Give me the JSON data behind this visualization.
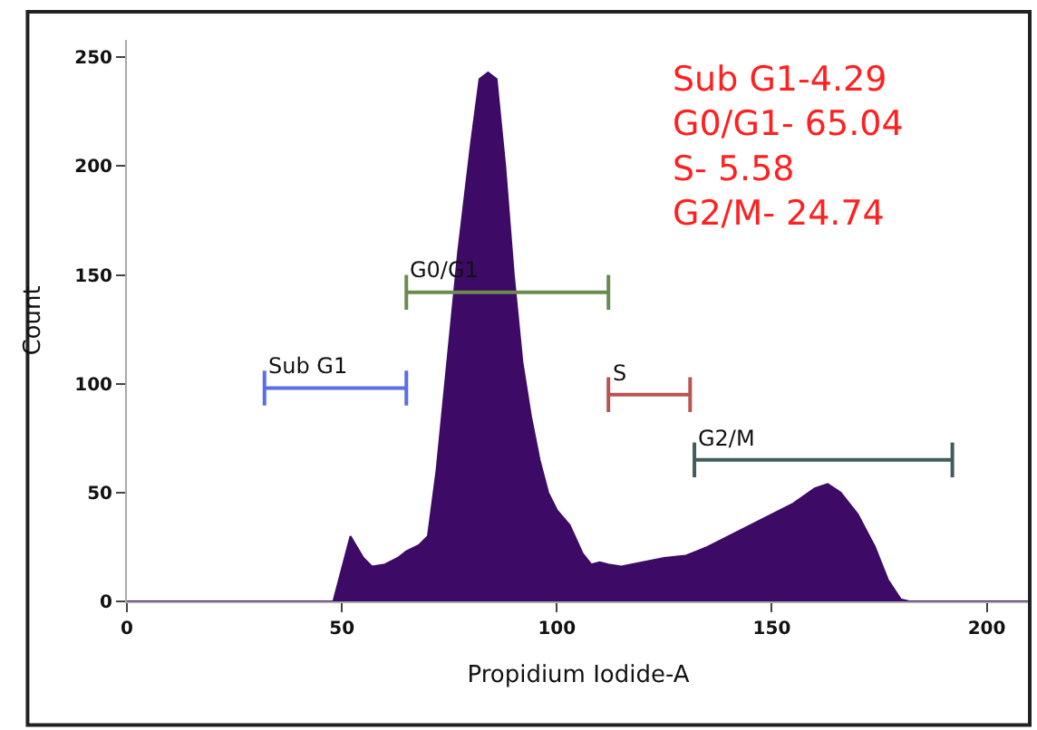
{
  "chart_data": {
    "type": "area",
    "xlabel": "Propidium Iodide-A",
    "ylabel": "Count",
    "xlim": [
      0,
      210
    ],
    "ylim": [
      0,
      258
    ],
    "xticks": [
      0,
      50,
      100,
      150,
      200
    ],
    "yticks": [
      0,
      50,
      100,
      150,
      200,
      250
    ],
    "series": [
      {
        "color": "#3d0a66",
        "x": [
          0,
          47,
          48,
          50,
          52,
          55,
          57,
          60,
          63,
          65,
          68,
          70,
          72,
          74,
          77,
          80,
          82,
          84,
          86,
          88,
          90,
          92,
          94,
          96,
          98,
          100,
          103,
          106,
          108,
          110,
          112,
          115,
          120,
          125,
          130,
          135,
          140,
          145,
          150,
          155,
          160,
          163,
          166,
          170,
          174,
          177,
          180,
          182,
          210
        ],
        "values": [
          0,
          0,
          0,
          15,
          30,
          20,
          16,
          17,
          20,
          23,
          26,
          30,
          60,
          100,
          160,
          210,
          240,
          243,
          240,
          200,
          150,
          110,
          85,
          65,
          50,
          42,
          35,
          22,
          17,
          18,
          17,
          16,
          18,
          20,
          21,
          25,
          30,
          35,
          40,
          45,
          52,
          54,
          50,
          40,
          25,
          10,
          1,
          0,
          0
        ]
      },
      {
        "type": "line",
        "color": "#5a6ee8",
        "x": [
          32,
          65
        ],
        "values": [
          98,
          98
        ],
        "errors": [
          8,
          8
        ]
      },
      {
        "type": "line",
        "color": "#6b8a4e",
        "x": [
          65,
          112
        ],
        "values": [
          142,
          142
        ],
        "errors": [
          8,
          8
        ]
      },
      {
        "type": "line",
        "color": "#b85450",
        "x": [
          112,
          131
        ],
        "values": [
          95,
          95
        ],
        "errors": [
          8,
          8
        ]
      },
      {
        "type": "line",
        "color": "#3f5e5a",
        "x": [
          132,
          192
        ],
        "values": [
          65,
          65
        ],
        "errors": [
          8,
          8
        ]
      }
    ],
    "annotations": [
      "Sub G1-4.29",
      "G0/G1- 65.04",
      "S- 5.58",
      "G2/M- 24.74",
      {
        "text": "Sub G1",
        "x": 32,
        "y": 98
      },
      {
        "text": "G0/G1",
        "x": 65,
        "y": 142
      },
      {
        "text": "S",
        "x": 112,
        "y": 95
      },
      {
        "text": "G2/M",
        "x": 132,
        "y": 65
      }
    ]
  }
}
